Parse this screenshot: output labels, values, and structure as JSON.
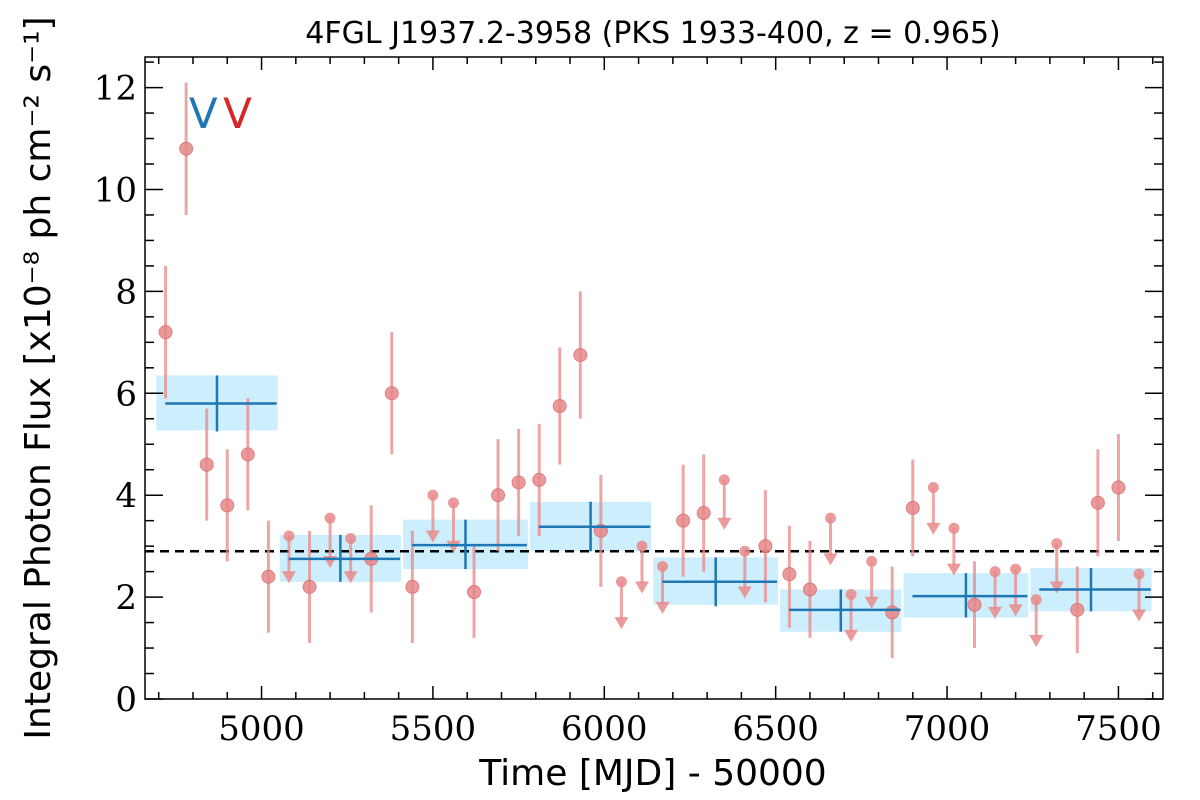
{
  "chart_data": {
    "type": "scatter",
    "title": "4FGL J1937.2-3958 (PKS 1933-400, z = 0.965)",
    "xlabel": "Time [MJD] - 50000",
    "ylabel": "Integral Photon Flux [x10⁻⁸ ph cm⁻² s⁻¹]",
    "xlim": [
      4660,
      7630
    ],
    "ylim": [
      0,
      12.6
    ],
    "x_ticks": [
      5000,
      5500,
      6000,
      6500,
      7000,
      7500
    ],
    "y_ticks": [
      0,
      2,
      4,
      6,
      8,
      10,
      12
    ],
    "grid": false,
    "mean_flux": 2.9,
    "markers": [
      {
        "label": "V",
        "x": 4830,
        "color": "#1f77b4"
      },
      {
        "label": "V",
        "x": 4930,
        "color": "#d62728"
      }
    ],
    "short_bins": {
      "color": "#e8898a",
      "detections": [
        {
          "x": 4720,
          "y": 7.2,
          "yerr": [
            5.9,
            8.5
          ]
        },
        {
          "x": 4780,
          "y": 10.8,
          "yerr": [
            9.5,
            12.1
          ]
        },
        {
          "x": 4840,
          "y": 4.6,
          "yerr": [
            3.5,
            5.7
          ]
        },
        {
          "x": 4900,
          "y": 3.8,
          "yerr": [
            2.7,
            4.9
          ]
        },
        {
          "x": 4960,
          "y": 4.8,
          "yerr": [
            3.7,
            5.9
          ]
        },
        {
          "x": 5020,
          "y": 2.4,
          "yerr": [
            1.3,
            3.5
          ]
        },
        {
          "x": 5140,
          "y": 2.2,
          "yerr": [
            1.1,
            3.3
          ]
        },
        {
          "x": 5320,
          "y": 2.75,
          "yerr": [
            1.7,
            3.8
          ]
        },
        {
          "x": 5380,
          "y": 6.0,
          "yerr": [
            4.8,
            7.2
          ]
        },
        {
          "x": 5440,
          "y": 2.2,
          "yerr": [
            1.1,
            3.3
          ]
        },
        {
          "x": 5620,
          "y": 2.1,
          "yerr": [
            1.2,
            3.0
          ]
        },
        {
          "x": 5690,
          "y": 4.0,
          "yerr": [
            2.9,
            5.1
          ]
        },
        {
          "x": 5750,
          "y": 4.25,
          "yerr": [
            3.2,
            5.3
          ]
        },
        {
          "x": 5810,
          "y": 4.3,
          "yerr": [
            3.2,
            5.4
          ]
        },
        {
          "x": 5870,
          "y": 5.75,
          "yerr": [
            4.6,
            6.9
          ]
        },
        {
          "x": 5930,
          "y": 6.75,
          "yerr": [
            5.5,
            8.0
          ]
        },
        {
          "x": 5990,
          "y": 3.3,
          "yerr": [
            2.2,
            4.4
          ]
        },
        {
          "x": 6230,
          "y": 3.5,
          "yerr": [
            2.4,
            4.6
          ]
        },
        {
          "x": 6290,
          "y": 3.65,
          "yerr": [
            2.5,
            4.8
          ]
        },
        {
          "x": 6470,
          "y": 3.0,
          "yerr": [
            1.9,
            4.1
          ]
        },
        {
          "x": 6540,
          "y": 2.45,
          "yerr": [
            1.4,
            3.4
          ]
        },
        {
          "x": 6600,
          "y": 2.15,
          "yerr": [
            1.2,
            3.1
          ]
        },
        {
          "x": 6840,
          "y": 1.7,
          "yerr": [
            0.8,
            2.6
          ]
        },
        {
          "x": 6900,
          "y": 3.75,
          "yerr": [
            2.8,
            4.7
          ]
        },
        {
          "x": 7080,
          "y": 1.85,
          "yerr": [
            1.0,
            2.7
          ]
        },
        {
          "x": 7380,
          "y": 1.75,
          "yerr": [
            0.9,
            2.6
          ]
        },
        {
          "x": 7440,
          "y": 3.85,
          "yerr": [
            2.8,
            4.9
          ]
        },
        {
          "x": 7500,
          "y": 4.15,
          "yerr": [
            3.1,
            5.2
          ]
        }
      ],
      "upper_limits": [
        {
          "x": 5080,
          "y": 3.2,
          "to": 2.35
        },
        {
          "x": 5200,
          "y": 3.55,
          "to": 2.65
        },
        {
          "x": 5260,
          "y": 3.15,
          "to": 2.35
        },
        {
          "x": 5500,
          "y": 4.0,
          "to": 3.15
        },
        {
          "x": 5560,
          "y": 3.85,
          "to": 2.95
        },
        {
          "x": 6050,
          "y": 2.3,
          "to": 1.45
        },
        {
          "x": 6110,
          "y": 3.0,
          "to": 2.15
        },
        {
          "x": 6170,
          "y": 2.6,
          "to": 1.75
        },
        {
          "x": 6350,
          "y": 4.3,
          "to": 3.4
        },
        {
          "x": 6410,
          "y": 2.9,
          "to": 2.05
        },
        {
          "x": 6660,
          "y": 3.55,
          "to": 2.7
        },
        {
          "x": 6720,
          "y": 2.05,
          "to": 1.2
        },
        {
          "x": 6780,
          "y": 2.7,
          "to": 1.85
        },
        {
          "x": 6960,
          "y": 4.15,
          "to": 3.3
        },
        {
          "x": 7020,
          "y": 3.35,
          "to": 2.5
        },
        {
          "x": 7140,
          "y": 2.5,
          "to": 1.65
        },
        {
          "x": 7200,
          "y": 2.55,
          "to": 1.7
        },
        {
          "x": 7260,
          "y": 1.95,
          "to": 1.1
        },
        {
          "x": 7320,
          "y": 3.05,
          "to": 2.15
        },
        {
          "x": 7560,
          "y": 2.45,
          "to": 1.6
        }
      ]
    },
    "long_bins": {
      "color": "#1f77b4",
      "band_color": "#cdeefc",
      "bins": [
        {
          "x0": 4690,
          "x1": 5050,
          "xc": 4870,
          "y": 5.8,
          "band": [
            5.27,
            6.35
          ],
          "yerr": [
            5.25,
            6.35
          ]
        },
        {
          "x0": 5050,
          "x1": 5410,
          "xc": 5230,
          "y": 2.75,
          "band": [
            2.3,
            3.22
          ],
          "yerr": [
            2.3,
            3.22
          ]
        },
        {
          "x0": 5410,
          "x1": 5780,
          "xc": 5595,
          "y": 3.02,
          "band": [
            2.55,
            3.52
          ],
          "yerr": [
            2.55,
            3.52
          ]
        },
        {
          "x0": 5780,
          "x1": 6140,
          "xc": 5960,
          "y": 3.38,
          "band": [
            2.9,
            3.87
          ],
          "yerr": [
            2.9,
            3.87
          ]
        },
        {
          "x0": 6140,
          "x1": 6510,
          "xc": 6325,
          "y": 2.3,
          "band": [
            1.85,
            2.78
          ],
          "yerr": [
            1.82,
            2.78
          ]
        },
        {
          "x0": 6510,
          "x1": 6870,
          "xc": 6690,
          "y": 1.75,
          "band": [
            1.32,
            2.15
          ],
          "yerr": [
            1.32,
            2.15
          ]
        },
        {
          "x0": 6870,
          "x1": 7240,
          "xc": 7055,
          "y": 2.02,
          "band": [
            1.6,
            2.47
          ],
          "yerr": [
            1.6,
            2.47
          ]
        },
        {
          "x0": 7240,
          "x1": 7600,
          "xc": 7420,
          "y": 2.15,
          "band": [
            1.72,
            2.57
          ],
          "yerr": [
            1.72,
            2.57
          ]
        }
      ]
    }
  }
}
